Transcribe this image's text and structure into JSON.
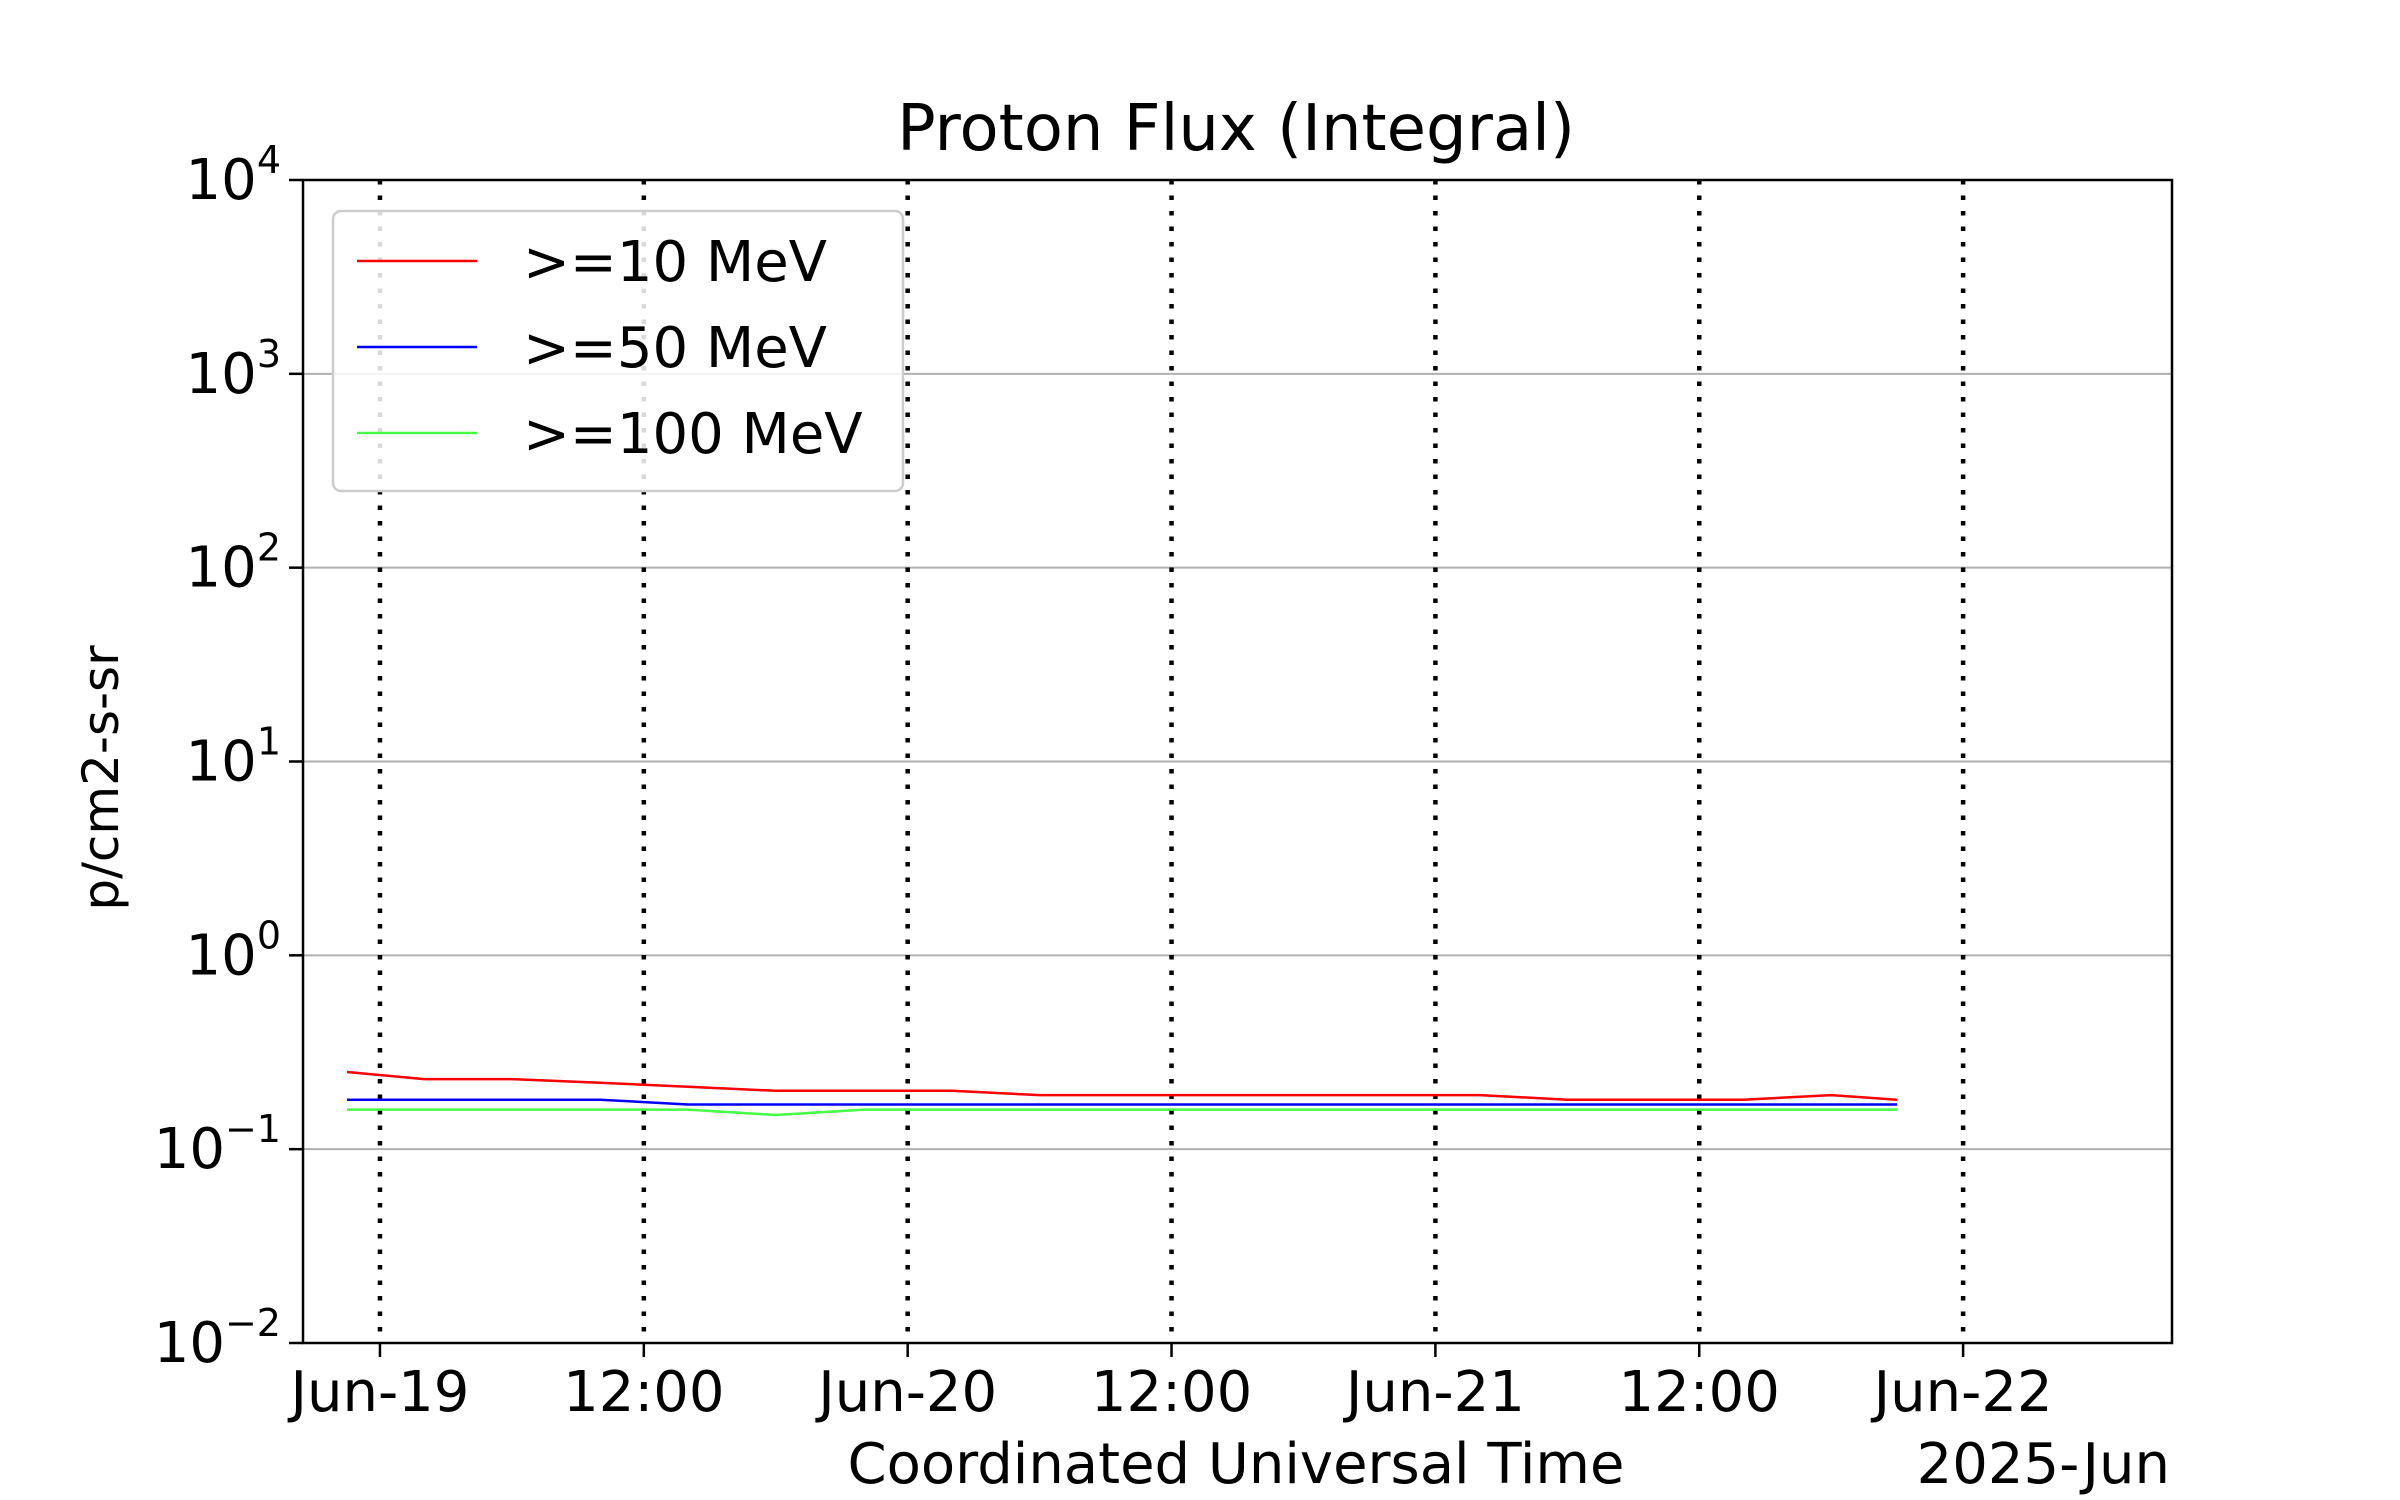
{
  "chart_data": {
    "type": "line",
    "title": "Proton Flux (Integral)",
    "xlabel": "Coordinated Universal Time",
    "ylabel": "p/cm2-s-sr",
    "x_corner_label": "2025-Jun",
    "y_scale": "log",
    "ylim": [
      0.01,
      10000
    ],
    "y_ticks": [
      {
        "value": 0.01,
        "base": "10",
        "exp": "−2"
      },
      {
        "value": 0.1,
        "base": "10",
        "exp": "−1"
      },
      {
        "value": 1,
        "base": "10",
        "exp": "0"
      },
      {
        "value": 10,
        "base": "10",
        "exp": "1"
      },
      {
        "value": 100,
        "base": "10",
        "exp": "2"
      },
      {
        "value": 1000,
        "base": "10",
        "exp": "3"
      },
      {
        "value": 10000,
        "base": "10",
        "exp": "4"
      }
    ],
    "xlim": [
      "2025-06-18T20:30",
      "2025-06-22T09:30"
    ],
    "x_ticks": [
      {
        "time": "2025-06-19T00:00",
        "label": "Jun-19"
      },
      {
        "time": "2025-06-19T12:00",
        "label": "12:00"
      },
      {
        "time": "2025-06-20T00:00",
        "label": "Jun-20"
      },
      {
        "time": "2025-06-20T12:00",
        "label": "12:00"
      },
      {
        "time": "2025-06-21T00:00",
        "label": "Jun-21"
      },
      {
        "time": "2025-06-21T12:00",
        "label": "12:00"
      },
      {
        "time": "2025-06-22T00:00",
        "label": "Jun-22"
      }
    ],
    "grid": {
      "horizontal": "solid gray at decades",
      "vertical": "dotted black at ticks"
    },
    "legend_position": "top-left",
    "series": [
      {
        "name": ">=10 MeV",
        "color": "#ff0000",
        "x": [
          "2025-06-18T22:30",
          "2025-06-19T02:00",
          "2025-06-19T06:00",
          "2025-06-19T10:00",
          "2025-06-19T14:00",
          "2025-06-19T18:00",
          "2025-06-19T22:00",
          "2025-06-20T02:00",
          "2025-06-20T06:00",
          "2025-06-20T10:00",
          "2025-06-20T14:00",
          "2025-06-20T18:00",
          "2025-06-20T22:00",
          "2025-06-21T02:00",
          "2025-06-21T06:00",
          "2025-06-21T10:00",
          "2025-06-21T14:00",
          "2025-06-21T18:00",
          "2025-06-21T21:00"
        ],
        "values": [
          0.25,
          0.23,
          0.23,
          0.22,
          0.21,
          0.2,
          0.2,
          0.2,
          0.19,
          0.19,
          0.19,
          0.19,
          0.19,
          0.19,
          0.18,
          0.18,
          0.18,
          0.19,
          0.18
        ]
      },
      {
        "name": ">=50 MeV",
        "color": "#0000ff",
        "x": [
          "2025-06-18T22:30",
          "2025-06-19T02:00",
          "2025-06-19T06:00",
          "2025-06-19T10:00",
          "2025-06-19T14:00",
          "2025-06-19T18:00",
          "2025-06-19T22:00",
          "2025-06-20T02:00",
          "2025-06-20T06:00",
          "2025-06-20T10:00",
          "2025-06-20T14:00",
          "2025-06-20T18:00",
          "2025-06-20T22:00",
          "2025-06-21T02:00",
          "2025-06-21T06:00",
          "2025-06-21T10:00",
          "2025-06-21T14:00",
          "2025-06-21T18:00",
          "2025-06-21T21:00"
        ],
        "values": [
          0.18,
          0.18,
          0.18,
          0.18,
          0.17,
          0.17,
          0.17,
          0.17,
          0.17,
          0.17,
          0.17,
          0.17,
          0.17,
          0.17,
          0.17,
          0.17,
          0.17,
          0.17,
          0.17
        ]
      },
      {
        "name": ">=100 MeV",
        "color": "#44ff44",
        "x": [
          "2025-06-18T22:30",
          "2025-06-19T02:00",
          "2025-06-19T06:00",
          "2025-06-19T10:00",
          "2025-06-19T14:00",
          "2025-06-19T18:00",
          "2025-06-19T22:00",
          "2025-06-20T02:00",
          "2025-06-20T06:00",
          "2025-06-20T10:00",
          "2025-06-20T14:00",
          "2025-06-20T18:00",
          "2025-06-20T22:00",
          "2025-06-21T02:00",
          "2025-06-21T06:00",
          "2025-06-21T10:00",
          "2025-06-21T14:00",
          "2025-06-21T18:00",
          "2025-06-21T21:00"
        ],
        "values": [
          0.16,
          0.16,
          0.16,
          0.16,
          0.16,
          0.15,
          0.16,
          0.16,
          0.16,
          0.16,
          0.16,
          0.16,
          0.16,
          0.16,
          0.16,
          0.16,
          0.16,
          0.16,
          0.16
        ]
      }
    ]
  }
}
